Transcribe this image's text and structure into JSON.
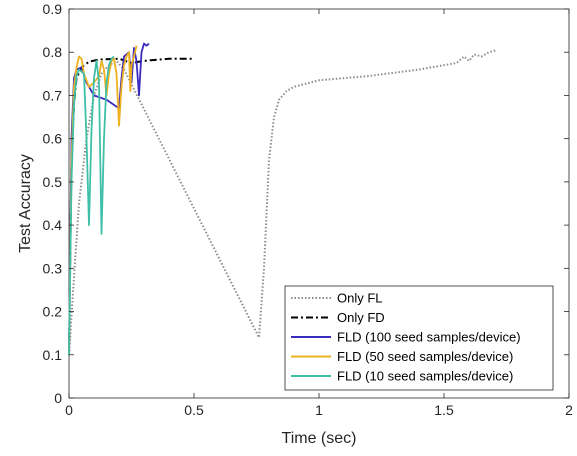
{
  "chart_data": {
    "type": "line",
    "xlabel": "Time (sec)",
    "ylabel": "Test Accuracy",
    "xlim": [
      0,
      2
    ],
    "ylim": [
      0,
      0.9
    ],
    "xticks": [
      0,
      0.5,
      1,
      1.5,
      2
    ],
    "xtick_labels": [
      "0",
      "0.5",
      "1",
      "1.5",
      "2"
    ],
    "yticks": [
      0,
      0.1,
      0.2,
      0.3,
      0.4,
      0.5,
      0.6,
      0.7,
      0.8,
      0.9
    ],
    "ytick_labels": [
      "0",
      "0.1",
      "0.2",
      "0.3",
      "0.4",
      "0.5",
      "0.6",
      "0.7",
      "0.8",
      "0.9"
    ],
    "grid": false,
    "legend_position": "bottom-right",
    "series": [
      {
        "name": "Only FL",
        "color": "#8c8c8c",
        "style": "dotted",
        "points": [
          [
            0.0,
            0.1
          ],
          [
            0.02,
            0.28
          ],
          [
            0.04,
            0.45
          ],
          [
            0.07,
            0.6
          ],
          [
            0.1,
            0.7
          ],
          [
            0.13,
            0.75
          ],
          [
            0.16,
            0.77
          ],
          [
            0.19,
            0.78
          ],
          [
            0.22,
            0.76
          ],
          [
            0.76,
            0.14
          ],
          [
            0.78,
            0.3
          ],
          [
            0.8,
            0.55
          ],
          [
            0.82,
            0.65
          ],
          [
            0.84,
            0.69
          ],
          [
            0.87,
            0.71
          ],
          [
            0.9,
            0.72
          ],
          [
            1.0,
            0.735
          ],
          [
            1.2,
            0.745
          ],
          [
            1.4,
            0.76
          ],
          [
            1.55,
            0.775
          ],
          [
            1.58,
            0.79
          ],
          [
            1.6,
            0.78
          ],
          [
            1.62,
            0.795
          ],
          [
            1.65,
            0.79
          ],
          [
            1.68,
            0.8
          ],
          [
            1.71,
            0.805
          ]
        ]
      },
      {
        "name": "Only FD",
        "color": "#000000",
        "style": "dashdot",
        "points": [
          [
            0.0,
            0.1
          ],
          [
            0.01,
            0.55
          ],
          [
            0.02,
            0.68
          ],
          [
            0.03,
            0.74
          ],
          [
            0.05,
            0.765
          ],
          [
            0.08,
            0.778
          ],
          [
            0.12,
            0.783
          ],
          [
            0.2,
            0.785
          ],
          [
            0.25,
            0.775
          ],
          [
            0.3,
            0.78
          ],
          [
            0.4,
            0.785
          ],
          [
            0.5,
            0.785
          ]
        ]
      },
      {
        "name": "FLD (100 seed samples/device)",
        "color": "#3a2bbf",
        "style": "solid",
        "points": [
          [
            0.0,
            0.1
          ],
          [
            0.01,
            0.6
          ],
          [
            0.02,
            0.74
          ],
          [
            0.03,
            0.76
          ],
          [
            0.05,
            0.765
          ],
          [
            0.07,
            0.73
          ],
          [
            0.1,
            0.7
          ],
          [
            0.15,
            0.69
          ],
          [
            0.2,
            0.67
          ],
          [
            0.21,
            0.74
          ],
          [
            0.22,
            0.79
          ],
          [
            0.24,
            0.8
          ],
          [
            0.25,
            0.73
          ],
          [
            0.26,
            0.81
          ],
          [
            0.27,
            0.78
          ],
          [
            0.28,
            0.7
          ],
          [
            0.29,
            0.8
          ],
          [
            0.3,
            0.82
          ],
          [
            0.31,
            0.815
          ],
          [
            0.32,
            0.82
          ]
        ]
      },
      {
        "name": "FLD (50 seed samples/device)",
        "color": "#eeb120",
        "style": "solid",
        "points": [
          [
            0.0,
            0.1
          ],
          [
            0.01,
            0.55
          ],
          [
            0.02,
            0.72
          ],
          [
            0.03,
            0.765
          ],
          [
            0.04,
            0.79
          ],
          [
            0.05,
            0.785
          ],
          [
            0.06,
            0.75
          ],
          [
            0.08,
            0.72
          ],
          [
            0.1,
            0.73
          ],
          [
            0.12,
            0.745
          ],
          [
            0.13,
            0.78
          ],
          [
            0.14,
            0.76
          ],
          [
            0.15,
            0.7
          ],
          [
            0.16,
            0.75
          ],
          [
            0.17,
            0.78
          ],
          [
            0.18,
            0.785
          ],
          [
            0.19,
            0.75
          ],
          [
            0.2,
            0.63
          ],
          [
            0.21,
            0.72
          ],
          [
            0.22,
            0.77
          ],
          [
            0.23,
            0.79
          ],
          [
            0.24,
            0.8
          ],
          [
            0.245,
            0.71
          ],
          [
            0.25,
            0.77
          ],
          [
            0.26,
            0.79
          ],
          [
            0.27,
            0.815
          ]
        ]
      },
      {
        "name": "FLD (10 seed samples/device)",
        "color": "#3fbfa8",
        "style": "solid",
        "points": [
          [
            0.0,
            0.1
          ],
          [
            0.01,
            0.5
          ],
          [
            0.02,
            0.68
          ],
          [
            0.03,
            0.745
          ],
          [
            0.04,
            0.76
          ],
          [
            0.05,
            0.755
          ],
          [
            0.06,
            0.75
          ],
          [
            0.07,
            0.6
          ],
          [
            0.08,
            0.4
          ],
          [
            0.09,
            0.62
          ],
          [
            0.1,
            0.74
          ],
          [
            0.11,
            0.78
          ],
          [
            0.12,
            0.73
          ],
          [
            0.13,
            0.38
          ],
          [
            0.14,
            0.6
          ],
          [
            0.15,
            0.73
          ],
          [
            0.16,
            0.77
          ],
          [
            0.17,
            0.785
          ],
          [
            0.18,
            0.79
          ]
        ]
      }
    ]
  }
}
